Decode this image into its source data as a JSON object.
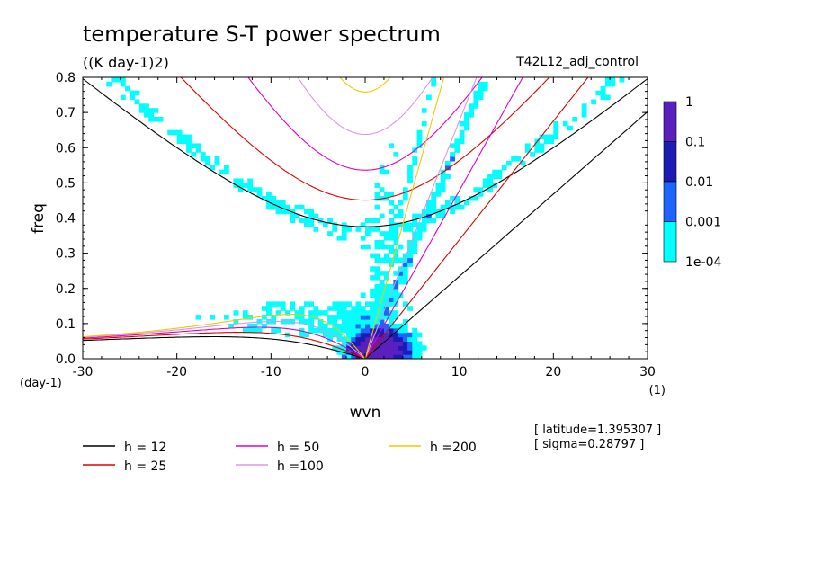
{
  "chart_data": {
    "type": "heatmap",
    "title": "temperature S-T power spectrum",
    "subtitle": "((K day-1)2)",
    "experiment": "T42L12_adj_control",
    "xlabel": "wvn",
    "ylabel": "freq",
    "xunit": "(1)",
    "yunit": "(day-1)",
    "xlim": [
      -30,
      30
    ],
    "ylim": [
      0,
      0.8
    ],
    "xticks": [
      "-30",
      "-20",
      "-10",
      "0",
      "10",
      "20",
      "30"
    ],
    "yticks": [
      "0.0",
      "0.1",
      "0.2",
      "0.3",
      "0.4",
      "0.5",
      "0.6",
      "0.7",
      "0.8"
    ],
    "colorbar": {
      "labels": [
        "1",
        "0.1",
        "0.01",
        "0.001",
        "1e-04"
      ],
      "colors": [
        "#5a1fbf",
        "#1c1cb4",
        "#1e64ff",
        "#00ffff"
      ]
    },
    "legend": [
      {
        "label": "h = 12",
        "color": "#000000"
      },
      {
        "label": "h = 25",
        "color": "#e00000"
      },
      {
        "label": "h = 50",
        "color": "#e000c8"
      },
      {
        "label": "h =100",
        "color": "#d898e0"
      },
      {
        "label": "h =200",
        "color": "#f0c800"
      }
    ],
    "info": [
      "[ latitude=1.395307 ]",
      "[ sigma=0.28797 ]"
    ],
    "dispersion": {
      "equivalent_depths": [
        12,
        25,
        50,
        100,
        200
      ],
      "colors": [
        "#000000",
        "#e00000",
        "#e000c8",
        "#d898e0",
        "#f0c800"
      ]
    }
  }
}
